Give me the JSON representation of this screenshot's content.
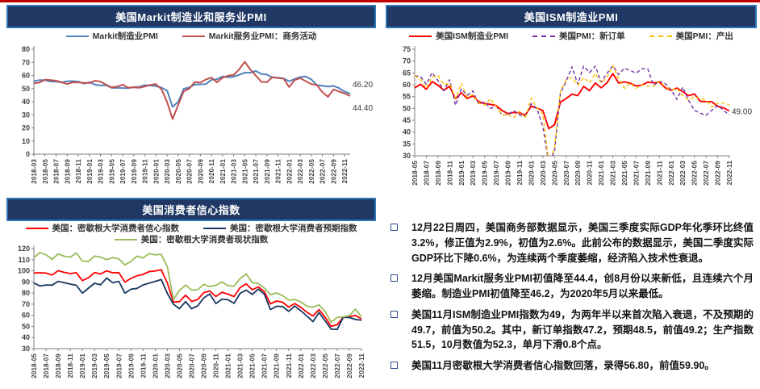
{
  "theme": {
    "topline_color": "#C00000",
    "titlebar_bg": "#1F3864",
    "titlebar_border": "#2E75B6",
    "titlebar_text": "#FFFFFF"
  },
  "chart_data": [
    {
      "type": "line",
      "title": "美国Markit制造业和服务业PMI",
      "legend_position": "top",
      "grid": false,
      "y_axis": {
        "min": 0,
        "max": 80,
        "step": 10
      },
      "label_every": 2,
      "x_labels": [
        "2018-03",
        "2018-05",
        "2018-07",
        "2018-09",
        "2018-11",
        "2019-01",
        "2019-03",
        "2019-05",
        "2019-07",
        "2019-09",
        "2019-11",
        "2020-01",
        "2020-03",
        "2020-05",
        "2020-07",
        "2020-09",
        "2020-11",
        "2021-01",
        "2021-03",
        "2021-05",
        "2021-07",
        "2021-09",
        "2021-11",
        "2022-01",
        "2022-03",
        "2022-05",
        "2022-07",
        "2022-09",
        "2022-11"
      ],
      "series": [
        {
          "name": "Markit制造业PMI",
          "color": "#4F81BD",
          "dashed": false,
          "width": 2,
          "values": [
            55.6,
            56.5,
            56.4,
            55.4,
            55.3,
            54.7,
            55.6,
            55.7,
            55.3,
            53.8,
            54.9,
            53.0,
            52.4,
            52.6,
            50.5,
            50.6,
            50.4,
            50.3,
            51.1,
            51.3,
            52.6,
            52.4,
            51.9,
            50.7,
            48.5,
            36.1,
            39.8,
            49.8,
            50.9,
            53.1,
            53.2,
            53.4,
            56.7,
            57.1,
            59.2,
            58.6,
            59.1,
            60.5,
            62.1,
            62.1,
            63.4,
            61.1,
            60.7,
            58.4,
            58.3,
            57.7,
            55.5,
            57.3,
            58.8,
            59.2,
            57.0,
            52.7,
            52.2,
            51.5,
            52.0,
            50.4,
            47.7,
            46.2
          ]
        },
        {
          "name": "Markit服务业PMI：商务活动",
          "color": "#C0504D",
          "dashed": false,
          "width": 2,
          "values": [
            54.0,
            54.6,
            56.8,
            56.5,
            56.0,
            54.8,
            53.5,
            54.8,
            54.7,
            54.4,
            54.2,
            56.0,
            55.3,
            53.0,
            50.9,
            51.5,
            53.0,
            50.7,
            50.9,
            50.6,
            51.6,
            52.8,
            53.4,
            49.4,
            39.8,
            26.7,
            37.5,
            47.9,
            50.0,
            55.0,
            54.6,
            56.9,
            58.4,
            54.8,
            58.3,
            59.8,
            60.4,
            64.7,
            70.4,
            64.6,
            59.9,
            55.1,
            54.9,
            58.7,
            58.0,
            57.6,
            51.2,
            56.5,
            58.0,
            55.6,
            53.4,
            52.7,
            47.3,
            43.7,
            49.3,
            47.8,
            46.2,
            44.4
          ]
        }
      ],
      "end_labels": [
        {
          "series": 0,
          "text": "46.20",
          "placement": "above"
        },
        {
          "series": 1,
          "text": "44.40",
          "placement": "below"
        }
      ]
    },
    {
      "type": "line",
      "title": "美国ISM制造业PMI",
      "legend_position": "top",
      "grid": false,
      "y_axis": {
        "min": 30,
        "max": 75,
        "step": 5
      },
      "label_every": 2,
      "x_labels": [
        "2018-05",
        "2018-07",
        "2018-09",
        "2018-11",
        "2019-01",
        "2019-03",
        "2019-05",
        "2019-07",
        "2019-09",
        "2019-11",
        "2020-01",
        "2020-03",
        "2020-05",
        "2020-07",
        "2020-09",
        "2020-11",
        "2021-01",
        "2021-03",
        "2021-05",
        "2021-07",
        "2021-09",
        "2021-11",
        "2022-01",
        "2022-03",
        "2022-05",
        "2022-07",
        "2022-09",
        "2022-11"
      ],
      "series": [
        {
          "name": "美国ISM制造业PMI",
          "color": "#FF0000",
          "dashed": false,
          "width": 1.9,
          "values": [
            58.7,
            60.2,
            58.1,
            61.3,
            59.8,
            57.7,
            59.3,
            54.1,
            56.6,
            54.2,
            55.3,
            52.8,
            52.1,
            51.7,
            51.2,
            49.1,
            47.8,
            48.3,
            48.1,
            47.2,
            50.9,
            50.1,
            49.1,
            41.5,
            43.1,
            52.6,
            54.2,
            56.0,
            55.4,
            59.3,
            57.5,
            60.7,
            58.7,
            60.8,
            64.7,
            60.7,
            61.2,
            60.6,
            59.5,
            59.9,
            61.1,
            60.8,
            61.1,
            58.7,
            57.6,
            58.6,
            57.1,
            55.4,
            56.1,
            53.0,
            52.8,
            52.8,
            50.9,
            50.2,
            49.0
          ]
        },
        {
          "name": "美国PMI：新订单",
          "color": "#7030A0",
          "dashed": true,
          "width": 1.4,
          "values": [
            63.7,
            63.5,
            60.2,
            65.1,
            61.8,
            57.4,
            62.1,
            51.3,
            58.2,
            55.5,
            57.4,
            51.7,
            52.7,
            50.0,
            50.8,
            47.2,
            47.3,
            49.1,
            47.2,
            46.8,
            52.0,
            49.8,
            42.2,
            27.1,
            31.8,
            56.4,
            61.5,
            67.6,
            60.2,
            67.9,
            65.1,
            67.9,
            61.1,
            64.8,
            68.0,
            64.3,
            67.0,
            66.0,
            64.9,
            66.7,
            66.7,
            59.8,
            61.5,
            60.4,
            57.9,
            53.8,
            59.0,
            53.5,
            49.2,
            48.0,
            47.1,
            49.2,
            51.3,
            49.2,
            47.2
          ]
        },
        {
          "name": "美国PMI：产出",
          "color": "#FFC000",
          "dashed": true,
          "width": 1.4,
          "values": [
            63.9,
            62.3,
            58.5,
            63.3,
            63.9,
            60.0,
            60.6,
            54.3,
            60.5,
            54.8,
            55.8,
            52.3,
            51.3,
            54.1,
            50.8,
            47.3,
            47.3,
            46.2,
            48.8,
            45.9,
            54.3,
            50.3,
            47.7,
            27.5,
            33.2,
            57.3,
            62.1,
            63.0,
            59.9,
            63.0,
            60.8,
            64.8,
            60.7,
            63.2,
            68.1,
            62.5,
            58.5,
            60.8,
            58.4,
            60.0,
            59.4,
            59.3,
            61.5,
            59.2,
            57.8,
            58.5,
            55.3,
            53.6,
            54.9,
            54.2,
            53.5,
            50.6,
            52.3,
            52.3,
            51.5
          ]
        }
      ],
      "end_labels": [
        {
          "series": 0,
          "text": "49.00",
          "placement": "right"
        }
      ]
    },
    {
      "type": "line",
      "title": "美国消费者信心指数",
      "legend_position": "top",
      "grid": false,
      "y_axis": {
        "min": 30,
        "max": 120,
        "step": 10
      },
      "label_every": 2,
      "x_labels": [
        "2018-05",
        "2018-07",
        "2018-09",
        "2018-11",
        "2019-01",
        "2019-03",
        "2019-05",
        "2019-07",
        "2019-09",
        "2019-11",
        "2020-01",
        "2020-03",
        "2020-05",
        "2020-07",
        "2020-09",
        "2020-11",
        "2021-01",
        "2021-03",
        "2021-05",
        "2021-07",
        "2021-09",
        "2021-11",
        "2022-01",
        "2022-03",
        "2022-05",
        "2022-07",
        "2022-09",
        "2022-11"
      ],
      "series": [
        {
          "name": "美国：密歇根大学消费者信心指数",
          "color": "#FF0000",
          "dashed": false,
          "width": 1.8,
          "values": [
            98.0,
            98.2,
            97.9,
            96.2,
            100.1,
            98.6,
            97.5,
            98.3,
            91.2,
            93.8,
            98.4,
            97.2,
            100.0,
            98.2,
            98.4,
            89.8,
            93.2,
            95.5,
            96.8,
            99.3,
            99.8,
            101.0,
            89.1,
            71.8,
            72.3,
            78.1,
            72.5,
            74.1,
            80.4,
            81.8,
            76.9,
            80.7,
            79.0,
            76.8,
            84.9,
            88.3,
            82.9,
            85.5,
            81.2,
            70.3,
            72.8,
            71.7,
            67.4,
            70.6,
            67.2,
            62.8,
            59.4,
            65.2,
            58.4,
            50.0,
            51.5,
            58.2,
            58.6,
            59.9,
            56.8
          ]
        },
        {
          "name": "美国：密歇根大学消费者预期指数",
          "color": "#17375E",
          "dashed": false,
          "width": 1.8,
          "values": [
            89.1,
            86.3,
            87.3,
            87.1,
            90.5,
            89.3,
            88.1,
            87.0,
            79.9,
            84.4,
            88.8,
            87.4,
            93.5,
            89.3,
            90.5,
            79.9,
            83.4,
            84.2,
            87.3,
            88.9,
            90.5,
            92.1,
            79.7,
            70.1,
            65.9,
            72.3,
            65.9,
            68.5,
            75.6,
            79.2,
            70.5,
            74.6,
            74.0,
            70.7,
            79.7,
            82.7,
            78.8,
            83.5,
            79.0,
            65.1,
            68.1,
            67.9,
            63.5,
            68.3,
            64.1,
            59.4,
            54.3,
            62.5,
            55.2,
            47.5,
            47.3,
            58.0,
            58.0,
            56.2,
            55.6
          ]
        },
        {
          "name": "美国：密歇根大学消费者现状指数",
          "color": "#9BBB59",
          "dashed": false,
          "width": 1.8,
          "values": [
            111.8,
            116.5,
            114.4,
            110.3,
            115.2,
            113.1,
            112.3,
            116.1,
            108.8,
            108.5,
            113.3,
            112.3,
            110.0,
            111.9,
            110.7,
            105.3,
            108.5,
            113.2,
            111.6,
            115.5,
            114.4,
            114.8,
            103.7,
            74.3,
            82.3,
            87.1,
            82.8,
            82.9,
            87.8,
            85.9,
            87.0,
            90.0,
            86.7,
            86.2,
            93.0,
            97.2,
            89.4,
            88.6,
            84.5,
            78.5,
            80.1,
            77.7,
            73.6,
            74.2,
            72.0,
            68.2,
            67.2,
            69.4,
            63.3,
            53.8,
            58.1,
            58.6,
            59.7,
            65.6,
            58.8
          ]
        }
      ],
      "end_labels": []
    }
  ],
  "notes": {
    "bullets": [
      "12月22日周四，美国商务部数据显示，美国三季度实际GDP年化季环比终值3.2%，修正值为2.9%，初值为2.6%。此前公布的数据显示，美国二季度实际GDP环比下降0.6%，为连续两个季度萎缩，经济陷入技术性衰退。",
      "12月美国Markit服务业PMI初值降至44.4，创8月份以来新低，且连续六个月萎缩。制造业PMI初值降至46.2，为2020年5月以来最低。",
      "美国11月ISM制造业PMI指数为49，为两年半以来首次陷入衰退，不及预期的49.7，前值为50.2。其中，新订单指数47.2，预期48.5，前值49.2；生产指数51.5，10月数值为52.3，单月下滑0.8个点。",
      "美国11月密歇根大学消费者信心指数回落，录得56.80，前值59.90。"
    ]
  }
}
